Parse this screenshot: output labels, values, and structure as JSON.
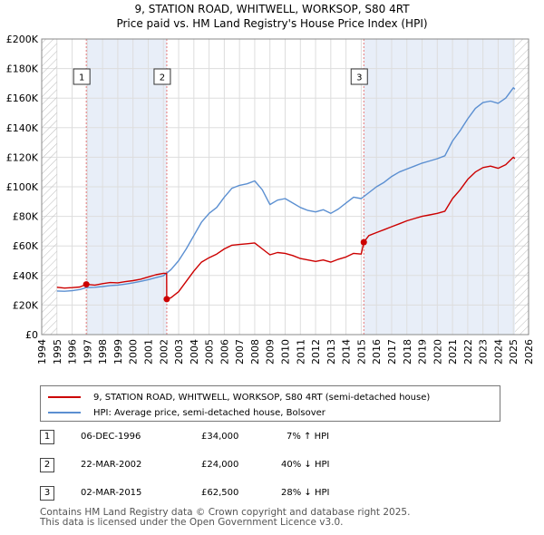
{
  "header": {
    "title": "9, STATION ROAD, WHITWELL, WORKSOP, S80 4RT",
    "subtitle": "Price paid vs. HM Land Registry's House Price Index (HPI)"
  },
  "colors": {
    "price": "#cc0000",
    "hpi": "#5b8fd1",
    "shade": "#e8eef8",
    "grid": "#dddddd",
    "vline": "#e77777"
  },
  "legend": {
    "price_label": "9, STATION ROAD, WHITWELL, WORKSOP, S80 4RT (semi-detached house)",
    "hpi_label": "HPI: Average price, semi-detached house, Bolsover"
  },
  "transactions": [
    {
      "num": "1",
      "date": "06-DEC-1996",
      "price": "£34,000",
      "delta": "7% ↑ HPI"
    },
    {
      "num": "2",
      "date": "22-MAR-2002",
      "price": "£24,000",
      "delta": "40% ↓ HPI"
    },
    {
      "num": "3",
      "date": "02-MAR-2015",
      "price": "£62,500",
      "delta": "28% ↓ HPI"
    }
  ],
  "footer": {
    "line1": "Contains HM Land Registry data © Crown copyright and database right 2025.",
    "line2": "This data is licensed under the Open Government Licence v3.0."
  },
  "chart_data": {
    "type": "line",
    "title": "9, STATION ROAD, WHITWELL, WORKSOP, S80 4RT",
    "xlim": [
      1994,
      2026
    ],
    "ylim": [
      0,
      200000
    ],
    "x_ticks": [
      1994,
      1995,
      1996,
      1997,
      1998,
      1999,
      2000,
      2001,
      2002,
      2003,
      2004,
      2005,
      2006,
      2007,
      2008,
      2009,
      2010,
      2011,
      2012,
      2013,
      2014,
      2015,
      2016,
      2017,
      2018,
      2019,
      2020,
      2021,
      2022,
      2023,
      2024,
      2025,
      2026
    ],
    "y_ticks": [
      {
        "value": 0,
        "label": "£0"
      },
      {
        "value": 20000,
        "label": "£20K"
      },
      {
        "value": 40000,
        "label": "£40K"
      },
      {
        "value": 60000,
        "label": "£60K"
      },
      {
        "value": 80000,
        "label": "£80K"
      },
      {
        "value": 100000,
        "label": "£100K"
      },
      {
        "value": 120000,
        "label": "£120K"
      },
      {
        "value": 140000,
        "label": "£140K"
      },
      {
        "value": 160000,
        "label": "£160K"
      },
      {
        "value": 180000,
        "label": "£180K"
      },
      {
        "value": 200000,
        "label": "£200K"
      }
    ],
    "shaded_ranges": [
      [
        1996.93,
        2002.22
      ],
      [
        2015.17,
        2025.1
      ]
    ],
    "data_start": 1995.0,
    "data_end": 2025.1,
    "markers": [
      {
        "num": "1",
        "x": 1996.93,
        "y": 34000
      },
      {
        "num": "2",
        "x": 2002.22,
        "y": 24000
      },
      {
        "num": "3",
        "x": 2015.17,
        "y": 62500
      }
    ],
    "series": [
      {
        "name": "9, STATION ROAD, WHITWELL, WORKSOP, S80 4RT (semi-detached house)",
        "points": [
          [
            1995.0,
            32000
          ],
          [
            1995.5,
            31500
          ],
          [
            1996.0,
            31800
          ],
          [
            1996.5,
            32200
          ],
          [
            1996.93,
            34000
          ],
          [
            1997.5,
            33500
          ],
          [
            1998.0,
            34500
          ],
          [
            1998.5,
            35200
          ],
          [
            1999.0,
            35000
          ],
          [
            1999.5,
            35800
          ],
          [
            2000.0,
            36500
          ],
          [
            2000.5,
            37500
          ],
          [
            2001.0,
            39000
          ],
          [
            2001.5,
            40500
          ],
          [
            2002.0,
            41500
          ],
          [
            2002.21,
            41500
          ],
          [
            2002.22,
            24000
          ],
          [
            2002.5,
            25000
          ],
          [
            2003.0,
            29000
          ],
          [
            2003.5,
            36000
          ],
          [
            2004.0,
            43000
          ],
          [
            2004.5,
            49000
          ],
          [
            2005.0,
            52000
          ],
          [
            2005.5,
            54500
          ],
          [
            2006.0,
            58000
          ],
          [
            2006.5,
            60500
          ],
          [
            2007.0,
            61000
          ],
          [
            2007.5,
            61500
          ],
          [
            2008.0,
            62000
          ],
          [
            2008.5,
            58000
          ],
          [
            2009.0,
            54000
          ],
          [
            2009.5,
            55500
          ],
          [
            2010.0,
            55000
          ],
          [
            2010.5,
            53500
          ],
          [
            2011.0,
            51500
          ],
          [
            2011.5,
            50500
          ],
          [
            2012.0,
            49500
          ],
          [
            2012.5,
            50500
          ],
          [
            2013.0,
            49000
          ],
          [
            2013.5,
            51000
          ],
          [
            2014.0,
            52500
          ],
          [
            2014.5,
            55000
          ],
          [
            2015.0,
            54500
          ],
          [
            2015.17,
            62500
          ],
          [
            2015.5,
            67000
          ],
          [
            2016.0,
            69000
          ],
          [
            2016.5,
            71000
          ],
          [
            2017.0,
            73000
          ],
          [
            2017.5,
            75000
          ],
          [
            2018.0,
            77000
          ],
          [
            2018.5,
            78500
          ],
          [
            2019.0,
            80000
          ],
          [
            2019.5,
            81000
          ],
          [
            2020.0,
            82000
          ],
          [
            2020.5,
            83500
          ],
          [
            2021.0,
            92000
          ],
          [
            2021.5,
            98000
          ],
          [
            2022.0,
            105000
          ],
          [
            2022.5,
            110000
          ],
          [
            2023.0,
            113000
          ],
          [
            2023.5,
            114000
          ],
          [
            2024.0,
            112500
          ],
          [
            2024.5,
            115000
          ],
          [
            2025.0,
            120000
          ],
          [
            2025.1,
            119000
          ]
        ]
      },
      {
        "name": "HPI: Average price, semi-detached house, Bolsover",
        "points": [
          [
            1995.0,
            29500
          ],
          [
            1995.5,
            29300
          ],
          [
            1996.0,
            29700
          ],
          [
            1996.5,
            30500
          ],
          [
            1996.93,
            31800
          ],
          [
            1997.5,
            32000
          ],
          [
            1998.0,
            32500
          ],
          [
            1998.5,
            33200
          ],
          [
            1999.0,
            33500
          ],
          [
            1999.5,
            34200
          ],
          [
            2000.0,
            35000
          ],
          [
            2000.5,
            36000
          ],
          [
            2001.0,
            37200
          ],
          [
            2001.5,
            38500
          ],
          [
            2002.0,
            39800
          ],
          [
            2002.5,
            44000
          ],
          [
            2003.0,
            50000
          ],
          [
            2003.5,
            58000
          ],
          [
            2004.0,
            67000
          ],
          [
            2004.5,
            76000
          ],
          [
            2005.0,
            82000
          ],
          [
            2005.5,
            86000
          ],
          [
            2006.0,
            93000
          ],
          [
            2006.5,
            99000
          ],
          [
            2007.0,
            101000
          ],
          [
            2007.5,
            102000
          ],
          [
            2008.0,
            104000
          ],
          [
            2008.5,
            98000
          ],
          [
            2009.0,
            88000
          ],
          [
            2009.5,
            91000
          ],
          [
            2010.0,
            92000
          ],
          [
            2010.5,
            89000
          ],
          [
            2011.0,
            86000
          ],
          [
            2011.5,
            84000
          ],
          [
            2012.0,
            83000
          ],
          [
            2012.5,
            84500
          ],
          [
            2013.0,
            82000
          ],
          [
            2013.5,
            85000
          ],
          [
            2014.0,
            89000
          ],
          [
            2014.5,
            93000
          ],
          [
            2015.0,
            92000
          ],
          [
            2015.5,
            96000
          ],
          [
            2016.0,
            100000
          ],
          [
            2016.5,
            103000
          ],
          [
            2017.0,
            107000
          ],
          [
            2017.5,
            110000
          ],
          [
            2018.0,
            112000
          ],
          [
            2018.5,
            114000
          ],
          [
            2019.0,
            116000
          ],
          [
            2019.5,
            117500
          ],
          [
            2020.0,
            119000
          ],
          [
            2020.5,
            121000
          ],
          [
            2021.0,
            131000
          ],
          [
            2021.5,
            138000
          ],
          [
            2022.0,
            146000
          ],
          [
            2022.5,
            153000
          ],
          [
            2023.0,
            157000
          ],
          [
            2023.5,
            158000
          ],
          [
            2024.0,
            156500
          ],
          [
            2024.5,
            160000
          ],
          [
            2025.0,
            167000
          ],
          [
            2025.1,
            166000
          ]
        ]
      }
    ]
  }
}
